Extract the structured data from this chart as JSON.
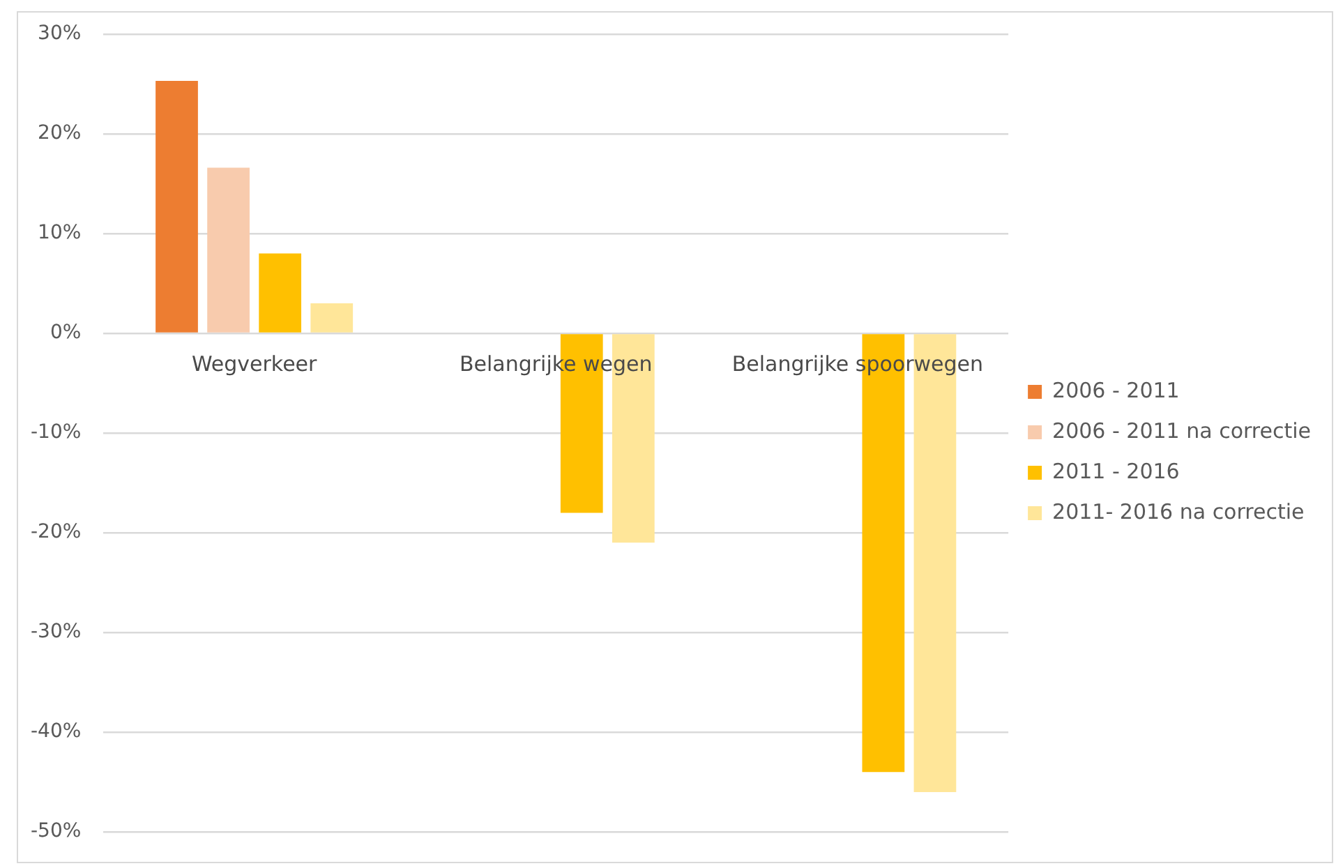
{
  "chart_data": {
    "type": "bar",
    "categories": [
      "Wegverkeer",
      "Belangrijke wegen",
      "Belangrijke spoorwegen"
    ],
    "series": [
      {
        "name": "2006 - 2011",
        "color": "#ed7d31",
        "values": [
          25.3,
          null,
          null
        ]
      },
      {
        "name": "2006 - 2011 na correctie",
        "color": "#f8cbad",
        "values": [
          16.6,
          null,
          null
        ]
      },
      {
        "name": "2011 - 2016",
        "color": "#ffc000",
        "values": [
          8,
          -18,
          -44
        ]
      },
      {
        "name": "2011- 2016 na correctie",
        "color": "#ffe699",
        "values": [
          3,
          -21,
          -46
        ]
      }
    ],
    "ylim": [
      -50,
      30
    ],
    "yticks": [
      {
        "value": -50,
        "label": "-50%"
      },
      {
        "value": -40,
        "label": "-40%"
      },
      {
        "value": -30,
        "label": "-30%"
      },
      {
        "value": -20,
        "label": "-20%"
      },
      {
        "value": -10,
        "label": "-10%"
      },
      {
        "value": 0,
        "label": "0%"
      },
      {
        "value": 10,
        "label": "10%"
      },
      {
        "value": 20,
        "label": "20%"
      },
      {
        "value": 30,
        "label": "30%"
      }
    ],
    "grid": "y",
    "legend": "right"
  }
}
